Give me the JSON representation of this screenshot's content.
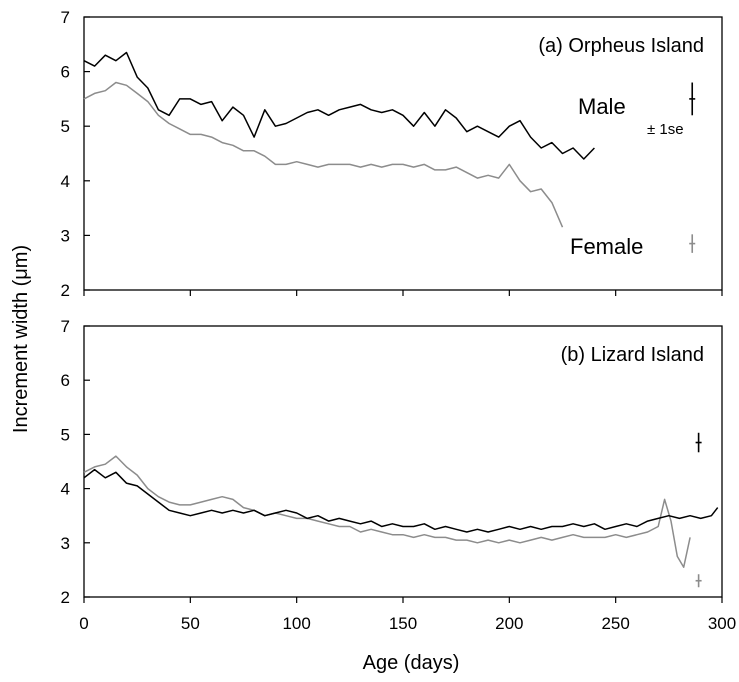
{
  "colors": {
    "male": "#000000",
    "female": "#8c8c8c",
    "axis": "#000000"
  },
  "chart_data": {
    "type": "line",
    "xlabel": "Age (days)",
    "ylabel": "Increment width (μm)",
    "xlim": [
      0,
      300
    ],
    "x_ticks": [
      0,
      50,
      100,
      150,
      200,
      250,
      300
    ],
    "grid": false,
    "panels": [
      {
        "id": "a",
        "label": "(a) Orpheus Island",
        "ylim": [
          2,
          7
        ],
        "y_ticks": [
          2,
          3,
          4,
          5,
          6,
          7
        ],
        "legend_male": "Male",
        "legend_female": "Female",
        "se_label": "± 1se",
        "error_bars": [
          {
            "series": "Male",
            "x": 286,
            "y": 5.5,
            "se": 0.3
          },
          {
            "series": "Female",
            "x": 286,
            "y": 2.85,
            "se": 0.17
          }
        ],
        "series": [
          {
            "name": "Male",
            "x": [
              0,
              5,
              10,
              15,
              20,
              25,
              30,
              35,
              40,
              45,
              50,
              55,
              60,
              65,
              70,
              75,
              80,
              85,
              90,
              95,
              100,
              105,
              110,
              115,
              120,
              125,
              130,
              135,
              140,
              145,
              150,
              155,
              160,
              165,
              170,
              175,
              180,
              185,
              190,
              195,
              200,
              205,
              210,
              215,
              220,
              225,
              230,
              235,
              240
            ],
            "y": [
              6.2,
              6.1,
              6.3,
              6.2,
              6.35,
              5.9,
              5.7,
              5.3,
              5.2,
              5.5,
              5.5,
              5.4,
              5.45,
              5.1,
              5.35,
              5.2,
              4.8,
              5.3,
              5.0,
              5.05,
              5.15,
              5.25,
              5.3,
              5.2,
              5.3,
              5.35,
              5.4,
              5.3,
              5.25,
              5.3,
              5.2,
              5.0,
              5.25,
              5.0,
              5.3,
              5.15,
              4.9,
              5.0,
              4.9,
              4.8,
              5.0,
              5.1,
              4.8,
              4.6,
              4.7,
              4.5,
              4.6,
              4.4,
              4.6
            ]
          },
          {
            "name": "Female",
            "x": [
              0,
              5,
              10,
              15,
              20,
              25,
              30,
              35,
              40,
              45,
              50,
              55,
              60,
              65,
              70,
              75,
              80,
              85,
              90,
              95,
              100,
              105,
              110,
              115,
              120,
              125,
              130,
              135,
              140,
              145,
              150,
              155,
              160,
              165,
              170,
              175,
              180,
              185,
              190,
              195,
              200,
              205,
              210,
              215,
              220,
              225
            ],
            "y": [
              5.5,
              5.6,
              5.65,
              5.8,
              5.75,
              5.6,
              5.45,
              5.2,
              5.05,
              4.95,
              4.85,
              4.85,
              4.8,
              4.7,
              4.65,
              4.55,
              4.55,
              4.45,
              4.3,
              4.3,
              4.35,
              4.3,
              4.25,
              4.3,
              4.3,
              4.3,
              4.25,
              4.3,
              4.25,
              4.3,
              4.3,
              4.25,
              4.3,
              4.2,
              4.2,
              4.25,
              4.15,
              4.05,
              4.1,
              4.05,
              4.3,
              4.0,
              3.8,
              3.85,
              3.6,
              3.15
            ]
          }
        ]
      },
      {
        "id": "b",
        "label": "(b) Lizard Island",
        "ylim": [
          2,
          7
        ],
        "y_ticks": [
          2,
          3,
          4,
          5,
          6,
          7
        ],
        "error_bars": [
          {
            "series": "Male",
            "x": 289,
            "y": 4.85,
            "se": 0.18
          },
          {
            "series": "Female",
            "x": 289,
            "y": 2.3,
            "se": 0.12
          }
        ],
        "series": [
          {
            "name": "Male",
            "x": [
              0,
              5,
              10,
              15,
              20,
              25,
              30,
              35,
              40,
              45,
              50,
              55,
              60,
              65,
              70,
              75,
              80,
              85,
              90,
              95,
              100,
              105,
              110,
              115,
              120,
              125,
              130,
              135,
              140,
              145,
              150,
              155,
              160,
              165,
              170,
              175,
              180,
              185,
              190,
              195,
              200,
              205,
              210,
              215,
              220,
              225,
              230,
              235,
              240,
              245,
              250,
              255,
              260,
              265,
              270,
              275,
              280,
              285,
              290,
              295,
              298
            ],
            "y": [
              4.2,
              4.35,
              4.2,
              4.3,
              4.1,
              4.05,
              3.9,
              3.75,
              3.6,
              3.55,
              3.5,
              3.55,
              3.6,
              3.55,
              3.6,
              3.55,
              3.6,
              3.5,
              3.55,
              3.6,
              3.55,
              3.45,
              3.5,
              3.4,
              3.45,
              3.4,
              3.35,
              3.4,
              3.3,
              3.35,
              3.3,
              3.3,
              3.35,
              3.25,
              3.3,
              3.25,
              3.2,
              3.25,
              3.2,
              3.25,
              3.3,
              3.25,
              3.3,
              3.25,
              3.3,
              3.3,
              3.35,
              3.3,
              3.35,
              3.25,
              3.3,
              3.35,
              3.3,
              3.4,
              3.45,
              3.5,
              3.45,
              3.5,
              3.45,
              3.5,
              3.65
            ]
          },
          {
            "name": "Female",
            "x": [
              0,
              5,
              10,
              15,
              20,
              25,
              30,
              35,
              40,
              45,
              50,
              55,
              60,
              65,
              70,
              75,
              80,
              85,
              90,
              95,
              100,
              105,
              110,
              115,
              120,
              125,
              130,
              135,
              140,
              145,
              150,
              155,
              160,
              165,
              170,
              175,
              180,
              185,
              190,
              195,
              200,
              205,
              210,
              215,
              220,
              225,
              230,
              235,
              240,
              245,
              250,
              255,
              260,
              265,
              270,
              273,
              276,
              279,
              282,
              285
            ],
            "y": [
              4.3,
              4.4,
              4.45,
              4.6,
              4.4,
              4.25,
              4.0,
              3.85,
              3.75,
              3.7,
              3.7,
              3.75,
              3.8,
              3.85,
              3.8,
              3.65,
              3.6,
              3.5,
              3.55,
              3.5,
              3.45,
              3.45,
              3.4,
              3.35,
              3.3,
              3.3,
              3.2,
              3.25,
              3.2,
              3.15,
              3.15,
              3.1,
              3.15,
              3.1,
              3.1,
              3.05,
              3.05,
              3.0,
              3.05,
              3.0,
              3.05,
              3.0,
              3.05,
              3.1,
              3.05,
              3.1,
              3.15,
              3.1,
              3.1,
              3.1,
              3.15,
              3.1,
              3.15,
              3.2,
              3.3,
              3.8,
              3.4,
              2.75,
              2.55,
              3.1
            ]
          }
        ]
      }
    ]
  }
}
